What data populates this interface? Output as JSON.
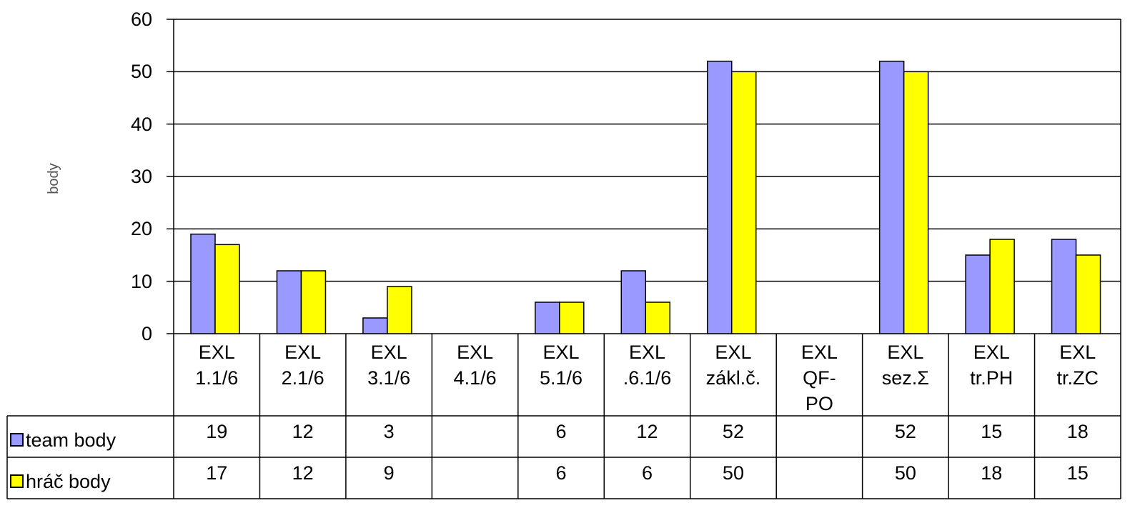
{
  "chart_data": {
    "type": "bar",
    "y_label": "body",
    "categories": [
      "EXL\n1.1/6",
      "EXL\n2.1/6",
      "EXL\n3.1/6",
      "EXL\n4.1/6",
      "EXL\n5.1/6",
      "EXL\n.6.1/6",
      "EXL\nzákl.č.",
      "EXL\nQF-\nPO",
      "EXL\nsez.Σ",
      "EXL\ntr.PH",
      "EXL\ntr.ZC"
    ],
    "series": [
      {
        "name": "team body",
        "color": "#9999ff",
        "values": [
          19,
          12,
          3,
          null,
          6,
          12,
          52,
          null,
          52,
          15,
          18
        ]
      },
      {
        "name": "hráč body",
        "color": "#ffff00",
        "values": [
          17,
          12,
          9,
          null,
          6,
          6,
          50,
          null,
          50,
          18,
          15
        ]
      }
    ],
    "ylim": [
      0,
      60
    ],
    "yticks": [
      0,
      10,
      20,
      30,
      40,
      50,
      60
    ],
    "grid": true,
    "data_table": true
  }
}
